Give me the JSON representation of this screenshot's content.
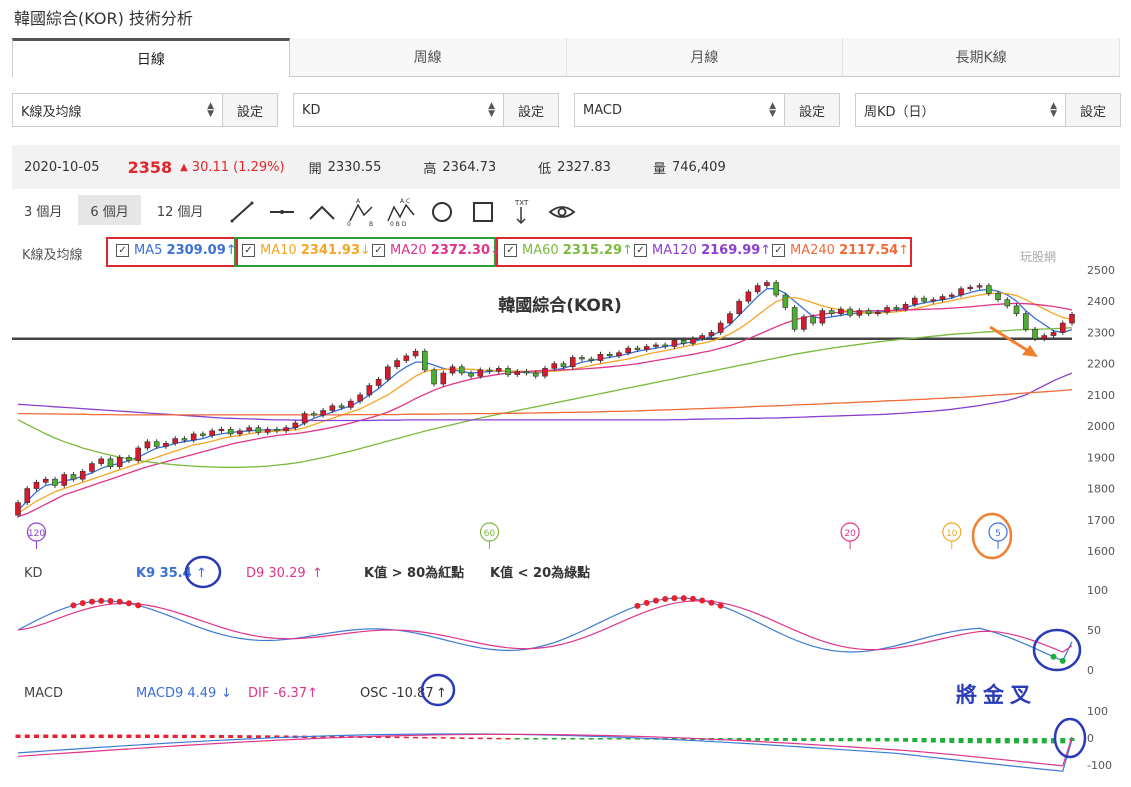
{
  "page_title": "韓國綜合(KOR) 技術分析",
  "tabs": [
    {
      "label": "日線",
      "active": true
    },
    {
      "label": "周線",
      "active": false
    },
    {
      "label": "月線",
      "active": false
    },
    {
      "label": "長期K線",
      "active": false
    }
  ],
  "selectors": [
    {
      "value": "K線及均線",
      "button": "設定"
    },
    {
      "value": "KD",
      "button": "設定"
    },
    {
      "value": "MACD",
      "button": "設定"
    },
    {
      "value": "周KD（日）",
      "button": "設定"
    }
  ],
  "quote": {
    "date": "2020-10-05",
    "price": "2358",
    "change": "30.11 (1.29%)",
    "open_label": "開",
    "open": "2330.55",
    "high_label": "高",
    "high": "2364.73",
    "low_label": "低",
    "low": "2327.83",
    "vol_label": "量",
    "vol": "746,409"
  },
  "periods": [
    "3 個月",
    "6 個月",
    "12 個月"
  ],
  "active_period": "6 個月",
  "tool_icons": [
    "line-tool-icon",
    "horizontal-line-tool-icon",
    "angle-tool-icon",
    "abc-pattern-tool-icon",
    "abcd-pattern-tool-icon",
    "circle-tool-icon",
    "rectangle-tool-icon",
    "text-tool-icon",
    "eye-icon"
  ],
  "ma_legend": {
    "label": "K線及均線",
    "items": [
      {
        "name": "MA5",
        "value": "2309.09",
        "arrow": "↑",
        "color": "#3b6fd6"
      },
      {
        "name": "MA10",
        "value": "2341.93",
        "arrow": "↓",
        "color": "#f5a623"
      },
      {
        "name": "MA20",
        "value": "2372.30",
        "arrow": "↓",
        "color": "#e0348a"
      },
      {
        "name": "MA60",
        "value": "2315.29",
        "arrow": "↑",
        "color": "#7cb83c"
      },
      {
        "name": "MA120",
        "value": "2169.99",
        "arrow": "↑",
        "color": "#8a3fd1"
      },
      {
        "name": "MA240",
        "value": "2117.54",
        "arrow": "↑",
        "color": "#f06a3a"
      }
    ]
  },
  "watermark": "玩股網",
  "chart_data": [
    {
      "type": "candlestick",
      "title": "韓國綜合(KOR)",
      "ylim": [
        1600,
        2500
      ],
      "yticks": [
        1600,
        1700,
        1800,
        1900,
        2000,
        2100,
        2200,
        2300,
        2400,
        2500
      ],
      "support_line": 2280,
      "close": [
        1755,
        1800,
        1820,
        1830,
        1810,
        1845,
        1830,
        1855,
        1880,
        1895,
        1870,
        1900,
        1890,
        1930,
        1950,
        1935,
        1945,
        1960,
        1955,
        1975,
        1970,
        1985,
        1990,
        1975,
        1985,
        1995,
        1980,
        1990,
        1985,
        1995,
        2010,
        2040,
        2035,
        2050,
        2065,
        2060,
        2080,
        2100,
        2130,
        2150,
        2190,
        2210,
        2225,
        2240,
        2180,
        2135,
        2170,
        2190,
        2170,
        2160,
        2180,
        2175,
        2185,
        2165,
        2175,
        2170,
        2160,
        2185,
        2200,
        2190,
        2220,
        2215,
        2210,
        2230,
        2225,
        2235,
        2250,
        2245,
        2255,
        2260,
        2255,
        2275,
        2265,
        2280,
        2290,
        2300,
        2330,
        2360,
        2400,
        2430,
        2450,
        2460,
        2420,
        2380,
        2310,
        2350,
        2330,
        2370,
        2360,
        2375,
        2355,
        2370,
        2360,
        2365,
        2380,
        2375,
        2390,
        2410,
        2400,
        2405,
        2415,
        2420,
        2440,
        2445,
        2450,
        2425,
        2405,
        2385,
        2360,
        2310,
        2280,
        2290,
        2300,
        2330,
        2358
      ],
      "ma_lines": [
        {
          "name": "MA5",
          "color": "#3b6fd6",
          "values": [
            1730,
            1760,
            1790,
            1810,
            1815,
            1825,
            1830,
            1840,
            1850,
            1865,
            1875,
            1880,
            1890,
            1900,
            1915,
            1930,
            1935,
            1945,
            1950,
            1955,
            1960,
            1970,
            1975,
            1980,
            1982,
            1985,
            1987,
            1988,
            1987,
            1990,
            1995,
            2010,
            2025,
            2035,
            2045,
            2055,
            2065,
            2080,
            2100,
            2120,
            2145,
            2170,
            2190,
            2205,
            2205,
            2195,
            2185,
            2180,
            2175,
            2170,
            2172,
            2175,
            2178,
            2175,
            2172,
            2172,
            2170,
            2172,
            2180,
            2185,
            2195,
            2205,
            2210,
            2215,
            2220,
            2225,
            2232,
            2240,
            2245,
            2250,
            2255,
            2260,
            2265,
            2270,
            2278,
            2288,
            2305,
            2325,
            2355,
            2385,
            2415,
            2440,
            2440,
            2425,
            2400,
            2375,
            2350,
            2345,
            2350,
            2355,
            2360,
            2362,
            2364,
            2365,
            2368,
            2372,
            2380,
            2388,
            2395,
            2400,
            2405,
            2410,
            2420,
            2428,
            2435,
            2438,
            2432,
            2420,
            2400,
            2370,
            2345,
            2325,
            2305,
            2300,
            2309
          ]
        },
        {
          "name": "MA10",
          "color": "#f5a623",
          "values": [
            1720,
            1740,
            1760,
            1775,
            1790,
            1800,
            1810,
            1820,
            1830,
            1840,
            1850,
            1860,
            1870,
            1880,
            1890,
            1900,
            1910,
            1920,
            1930,
            1940,
            1945,
            1952,
            1960,
            1966,
            1970,
            1975,
            1980,
            1982,
            1984,
            1986,
            1988,
            1995,
            2005,
            2015,
            2025,
            2035,
            2045,
            2055,
            2070,
            2085,
            2100,
            2120,
            2140,
            2160,
            2175,
            2180,
            2182,
            2183,
            2183,
            2182,
            2180,
            2178,
            2178,
            2177,
            2176,
            2175,
            2174,
            2174,
            2176,
            2178,
            2182,
            2188,
            2194,
            2200,
            2205,
            2210,
            2215,
            2222,
            2230,
            2236,
            2242,
            2248,
            2254,
            2260,
            2265,
            2272,
            2282,
            2295,
            2312,
            2332,
            2355,
            2378,
            2398,
            2410,
            2412,
            2405,
            2395,
            2385,
            2378,
            2372,
            2368,
            2365,
            2362,
            2362,
            2364,
            2366,
            2370,
            2376,
            2382,
            2390,
            2396,
            2402,
            2408,
            2414,
            2420,
            2424,
            2426,
            2424,
            2418,
            2405,
            2390,
            2375,
            2360,
            2348,
            2342
          ]
        },
        {
          "name": "MA20",
          "color": "#e0348a",
          "values": [
            1710,
            1720,
            1735,
            1750,
            1765,
            1780,
            1790,
            1800,
            1810,
            1820,
            1830,
            1840,
            1850,
            1860,
            1870,
            1878,
            1886,
            1894,
            1902,
            1910,
            1918,
            1926,
            1934,
            1942,
            1948,
            1954,
            1960,
            1965,
            1970,
            1973,
            1976,
            1980,
            1985,
            1990,
            1996,
            2003,
            2010,
            2018,
            2026,
            2035,
            2045,
            2058,
            2072,
            2088,
            2102,
            2115,
            2126,
            2135,
            2143,
            2150,
            2156,
            2161,
            2166,
            2170,
            2173,
            2175,
            2177,
            2178,
            2179,
            2180,
            2181,
            2183,
            2185,
            2187,
            2190,
            2193,
            2196,
            2200,
            2205,
            2210,
            2215,
            2220,
            2225,
            2230,
            2236,
            2242,
            2250,
            2258,
            2268,
            2280,
            2292,
            2305,
            2318,
            2330,
            2340,
            2348,
            2354,
            2358,
            2362,
            2365,
            2367,
            2368,
            2369,
            2370,
            2370,
            2371,
            2372,
            2373,
            2374,
            2375,
            2376,
            2378,
            2380,
            2382,
            2385,
            2388,
            2390,
            2392,
            2393,
            2392,
            2390,
            2387,
            2383,
            2378,
            2372
          ]
        },
        {
          "name": "MA60",
          "color": "#7cb83c",
          "values": [
            2020,
            2005,
            1990,
            1975,
            1962,
            1950,
            1940,
            1930,
            1922,
            1914,
            1907,
            1900,
            1895,
            1890,
            1886,
            1882,
            1879,
            1876,
            1874,
            1872,
            1870,
            1869,
            1868,
            1868,
            1868,
            1869,
            1870,
            1872,
            1875,
            1878,
            1882,
            1887,
            1893,
            1899,
            1906,
            1913,
            1920,
            1928,
            1936,
            1944,
            1952,
            1960,
            1968,
            1976,
            1984,
            1991,
            1998,
            2005,
            2012,
            2019,
            2026,
            2032,
            2038,
            2044,
            2050,
            2056,
            2062,
            2068,
            2074,
            2080,
            2086,
            2092,
            2098,
            2104,
            2110,
            2116,
            2122,
            2128,
            2134,
            2140,
            2146,
            2152,
            2158,
            2164,
            2170,
            2176,
            2182,
            2188,
            2194,
            2200,
            2206,
            2212,
            2218,
            2224,
            2230,
            2235,
            2240,
            2245,
            2250,
            2254,
            2258,
            2262,
            2266,
            2270,
            2273,
            2276,
            2279,
            2282,
            2285,
            2288,
            2291,
            2294,
            2296,
            2298,
            2300,
            2302,
            2304,
            2306,
            2308,
            2309,
            2310,
            2311,
            2312,
            2314,
            2315
          ]
        },
        {
          "name": "MA120",
          "color": "#8a3fd1",
          "values": [
            2070,
            2068,
            2066,
            2064,
            2062,
            2060,
            2058,
            2056,
            2054,
            2052,
            2050,
            2048,
            2046,
            2044,
            2042,
            2040,
            2038,
            2036,
            2034,
            2032,
            2030,
            2028,
            2026,
            2025,
            2024,
            2023,
            2022,
            2021,
            2020,
            2020,
            2019,
            2019,
            2018,
            2018,
            2018,
            2018,
            2018,
            2018,
            2018,
            2019,
            2019,
            2019,
            2020,
            2020,
            2020,
            2020,
            2020,
            2020,
            2020,
            2020,
            2020,
            2020,
            2020,
            2020,
            2020,
            2020,
            2020,
            2020,
            2020,
            2020,
            2020,
            2020,
            2020,
            2020,
            2020,
            2020,
            2020,
            2020,
            2020,
            2020,
            2020,
            2021,
            2021,
            2022,
            2022,
            2023,
            2023,
            2024,
            2024,
            2025,
            2025,
            2026,
            2026,
            2027,
            2028,
            2029,
            2030,
            2031,
            2032,
            2033,
            2034,
            2035,
            2036,
            2037,
            2038,
            2040,
            2042,
            2044,
            2046,
            2048,
            2051,
            2054,
            2058,
            2062,
            2066,
            2071,
            2076,
            2082,
            2090,
            2100,
            2115,
            2130,
            2145,
            2158,
            2170
          ]
        },
        {
          "name": "MA240",
          "color": "#f06a3a",
          "values": [
            2040,
            2040,
            2039,
            2039,
            2039,
            2038,
            2038,
            2038,
            2037,
            2037,
            2037,
            2036,
            2036,
            2036,
            2036,
            2036,
            2036,
            2036,
            2036,
            2036,
            2036,
            2036,
            2036,
            2036,
            2036,
            2036,
            2036,
            2036,
            2036,
            2036,
            2036,
            2036,
            2036,
            2036,
            2036,
            2036,
            2037,
            2037,
            2037,
            2037,
            2037,
            2037,
            2038,
            2038,
            2038,
            2038,
            2039,
            2039,
            2039,
            2040,
            2040,
            2040,
            2041,
            2041,
            2041,
            2042,
            2042,
            2043,
            2043,
            2044,
            2044,
            2045,
            2045,
            2046,
            2047,
            2047,
            2048,
            2049,
            2050,
            2051,
            2052,
            2053,
            2054,
            2055,
            2056,
            2057,
            2058,
            2059,
            2060,
            2062,
            2063,
            2064,
            2065,
            2066,
            2068,
            2069,
            2070,
            2071,
            2073,
            2074,
            2075,
            2077,
            2078,
            2079,
            2081,
            2082,
            2083,
            2085,
            2086,
            2088,
            2089,
            2091,
            2092,
            2094,
            2096,
            2098,
            2100,
            2102,
            2104,
            2106,
            2108,
            2110,
            2112,
            2114,
            2117
          ]
        }
      ],
      "ma_markers": [
        {
          "label": "120",
          "color": "#8a3fd1",
          "index": 2
        },
        {
          "label": "60",
          "color": "#7cb83c",
          "index": 51
        },
        {
          "label": "20",
          "color": "#e0348a",
          "index": 90
        },
        {
          "label": "10",
          "color": "#f5a623",
          "index": 101
        },
        {
          "label": "5",
          "color": "#3b6fd6",
          "index": 106
        }
      ]
    },
    {
      "type": "line",
      "name": "KD",
      "ylim": [
        0,
        100
      ],
      "yticks": [
        0,
        50,
        100
      ],
      "legend": {
        "label": "KD",
        "k": "K9 35.4",
        "k_arrow": "↑",
        "d": "D9 30.29",
        "d_arrow": "↑",
        "note1": "K值 > 80為紅點",
        "note2": "K值 < 20為綠點"
      }
    },
    {
      "type": "bar",
      "name": "MACD",
      "ylim": [
        -100,
        100
      ],
      "yticks": [
        100,
        0,
        -100
      ],
      "legend": {
        "label": "MACD",
        "macd": "MACD9 4.49",
        "macd_arrow": "↓",
        "dif": "DIF -6.37",
        "dif_arrow": "↑",
        "osc": "OSC -10.87",
        "osc_arrow": "↑"
      }
    }
  ],
  "annotation": "將金叉"
}
